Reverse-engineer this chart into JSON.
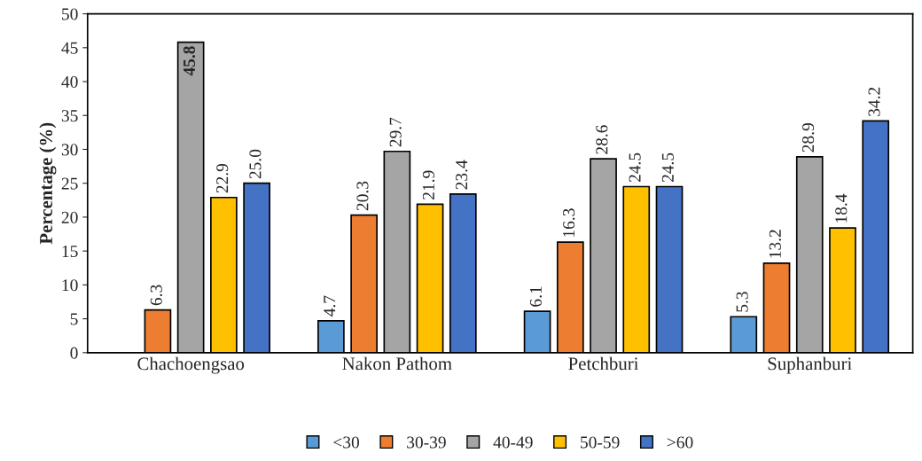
{
  "chart_data": {
    "type": "bar",
    "ylabel": "Percentage (%)",
    "categories": [
      "Chachoengsao",
      "Nakon Pathom",
      "Petchburi",
      "Suphanburi"
    ],
    "series": [
      {
        "name": "<30",
        "color": "#5b9bd5",
        "values": [
          null,
          4.7,
          6.1,
          5.3
        ],
        "value_labels": [
          null,
          "4.7",
          "6.1",
          "5.3"
        ]
      },
      {
        "name": "30-39",
        "color": "#ed7d31",
        "values": [
          6.3,
          20.3,
          16.3,
          13.2
        ],
        "value_labels": [
          "6.3",
          "20.3",
          "16.3",
          "13.2"
        ]
      },
      {
        "name": "40-49",
        "color": "#a5a5a5",
        "values": [
          45.8,
          29.7,
          28.6,
          28.9
        ],
        "value_labels": [
          "45.8",
          "29.7",
          "28.6",
          "28.9"
        ]
      },
      {
        "name": "50-59",
        "color": "#ffc000",
        "values": [
          22.9,
          21.9,
          24.5,
          18.4
        ],
        "value_labels": [
          "22.9",
          "21.9",
          "24.5",
          "18.4"
        ]
      },
      {
        "name": ">60",
        "color": "#4472c4",
        "values": [
          25.0,
          23.4,
          24.5,
          34.2
        ],
        "value_labels": [
          "25.0",
          "23.4",
          "24.5",
          "34.2"
        ]
      }
    ],
    "ylim": [
      0,
      50
    ],
    "yticks": [
      0,
      5,
      10,
      15,
      20,
      25,
      30,
      35,
      40,
      45,
      50
    ],
    "grid": false,
    "legend": "bottom"
  }
}
